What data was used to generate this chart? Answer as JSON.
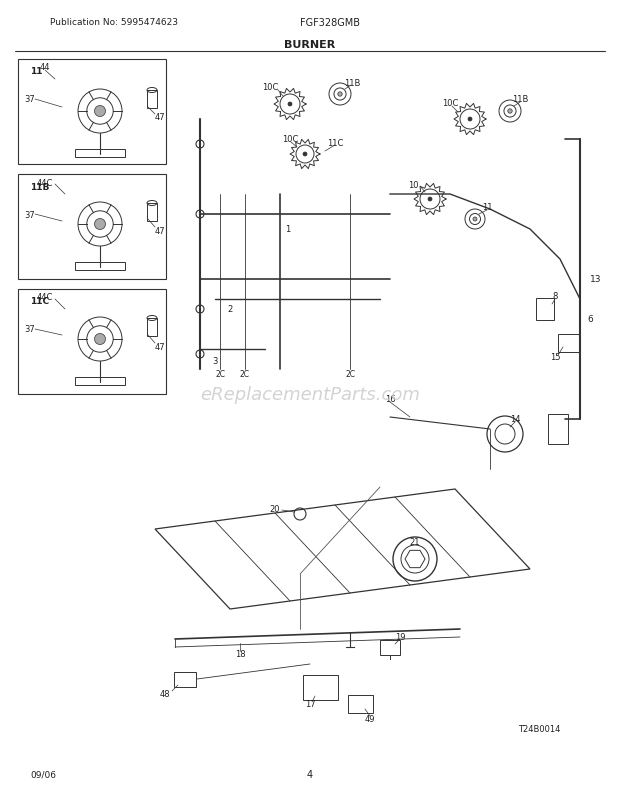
{
  "title": "BURNER",
  "pub_no": "Publication No: 5995474623",
  "model": "FGF328GMB",
  "date": "09/06",
  "page": "4",
  "watermark": "eReplacementParts.com",
  "diagram_id": "T24B0014",
  "bg_color": "#ffffff",
  "line_color": "#333333",
  "text_color": "#222222",
  "watermark_color": "#cccccc"
}
